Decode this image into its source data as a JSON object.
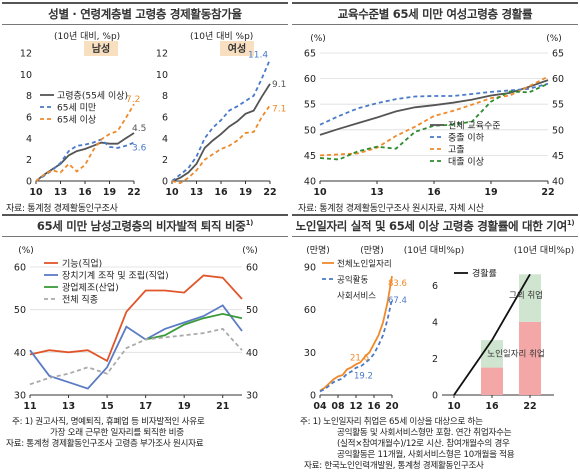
{
  "titles": {
    "p1": "성별 · 연령계층별 고령층 경제활동참가율",
    "p2": "교육수준별 65세 미만 여성고령층 경활률",
    "p3": "65세 미만 남성고령층의 비자발적 퇴직 비중",
    "p3_sup": "1)",
    "p4": "노인일자리 실적 및 65세 이상 고령층 경활률에 대한 기여",
    "p4_sup": "1)"
  },
  "sources": {
    "p1": "자료: 통계청 경제활동인구조사",
    "p2": "자료: 통계청 경제활동인구조사 원시자료, 자체 시산",
    "p3_note": "주: 1) 권고사직, 명예퇴직, 휴폐업 등 비자발적인 사유로",
    "p3_note2": "가장 오래 근무한 일자리를 퇴직한 비중",
    "p3_src": "자료: 통계청 경제활동인구조사 고령층 부가조사 원시자료",
    "p4_note1": "주: 1) 노인일자리 취업은 65세 이상을 대상으로 하는",
    "p4_note2": "공익활동 및 사회서비스형만 포함. 연간 취업자수는",
    "p4_note3": "(실적×참여개월수)/12로 시산. 참여개월수의 경우",
    "p4_note4": "공익활동은 11개월, 사회서비스형은 10개월을 적용",
    "p4_src": "자료: 한국노인인력개발원, 통계청 경제활동인구조사"
  },
  "chart_data": [
    {
      "id": "p1",
      "type": "line",
      "subcharts": [
        {
          "label": "남성",
          "unit": "(10년 대비, %p)",
          "x": [
            10,
            11,
            12,
            13,
            14,
            15,
            16,
            17,
            18,
            19,
            20,
            21,
            22
          ],
          "xticks": [
            "10",
            "13",
            "16",
            "19",
            "22"
          ],
          "ylim": [
            0,
            12
          ],
          "yticks": [
            0,
            2,
            4,
            6,
            8,
            10,
            12
          ],
          "series": [
            {
              "name": "고령층(55세 이상)",
              "color": "#555555",
              "dash": "",
              "values": [
                0,
                0.6,
                1.1,
                1.6,
                2.4,
                2.8,
                3.0,
                3.3,
                3.6,
                3.5,
                3.5,
                4.0,
                4.5
              ]
            },
            {
              "name": "65세 미만",
              "color": "#4a7ac8",
              "dash": "4,3",
              "values": [
                0,
                0.5,
                1.0,
                1.7,
                2.8,
                3.3,
                3.4,
                3.6,
                3.9,
                3.2,
                3.1,
                3.3,
                3.6
              ]
            },
            {
              "name": "65세 이상",
              "color": "#ef8a2a",
              "dash": "4,3",
              "values": [
                0,
                0.6,
                1.0,
                0.8,
                1.6,
                0.9,
                1.5,
                2.9,
                3.9,
                4.4,
                4.7,
                5.9,
                7.2
              ]
            }
          ],
          "end_labels": [
            "4.5",
            "7.2",
            "3.6"
          ]
        },
        {
          "label": "여성",
          "unit": "(10년 대비 %p)",
          "x": [
            10,
            11,
            12,
            13,
            14,
            15,
            16,
            17,
            18,
            19,
            20,
            21,
            22
          ],
          "xticks": [
            "10",
            "13",
            "16",
            "19",
            "22"
          ],
          "ylim": [
            0,
            12
          ],
          "yticks": [
            0,
            2,
            4,
            6,
            8,
            10,
            12
          ],
          "series": [
            {
              "name": "고령층(55세 이상)",
              "color": "#555555",
              "dash": "",
              "values": [
                0,
                0.3,
                0.8,
                1.6,
                3.1,
                3.8,
                4.4,
                5.1,
                5.6,
                6.3,
                6.6,
                7.9,
                9.1
              ]
            },
            {
              "name": "65세 미만",
              "color": "#4a7ac8",
              "dash": "4,3",
              "values": [
                0,
                0.6,
                1.2,
                2.3,
                4.0,
                5.0,
                5.7,
                6.6,
                7.0,
                7.5,
                8.0,
                9.6,
                11.4
              ]
            },
            {
              "name": "65세 이상",
              "color": "#ef8a2a",
              "dash": "4,3",
              "values": [
                0,
                -0.2,
                0.3,
                1.0,
                2.0,
                2.5,
                3.0,
                3.3,
                3.8,
                4.5,
                4.6,
                6.0,
                7.1
              ]
            }
          ],
          "end_labels": [
            "11.4",
            "9.1",
            "7.1"
          ]
        }
      ]
    },
    {
      "id": "p2",
      "type": "line",
      "unit_left": "(%)",
      "unit_right": "(%)",
      "x": [
        10,
        11,
        12,
        13,
        14,
        15,
        16,
        17,
        18,
        19,
        20,
        21,
        22
      ],
      "xticks": [
        "10",
        "13",
        "16",
        "19",
        "22"
      ],
      "ylim": [
        40,
        65
      ],
      "yticks": [
        40,
        45,
        50,
        55,
        60,
        65
      ],
      "series": [
        {
          "name": "전체 교육수준",
          "color": "#555555",
          "dash": "",
          "values": [
            49.0,
            50.2,
            51.3,
            52.4,
            53.6,
            54.4,
            54.8,
            55.3,
            55.9,
            56.7,
            57.2,
            58.4,
            59.7
          ]
        },
        {
          "name": "중졸 이하",
          "color": "#4a7ac8",
          "dash": "4,3",
          "values": [
            51.0,
            52.7,
            54.2,
            55.2,
            56.0,
            56.5,
            56.6,
            56.6,
            57.0,
            57.4,
            57.7,
            58.0,
            59.0
          ]
        },
        {
          "name": "고졸",
          "color": "#ef8a2a",
          "dash": "4,3",
          "values": [
            45.0,
            45.2,
            45.4,
            46.5,
            48.8,
            50.6,
            52.7,
            53.7,
            54.9,
            56.2,
            56.7,
            58.5,
            60.4
          ]
        },
        {
          "name": "대졸 이상",
          "color": "#2e8b2e",
          "dash": "4,3",
          "values": [
            44.5,
            44.2,
            45.8,
            46.7,
            46.3,
            49.6,
            50.8,
            51.0,
            51.6,
            55.5,
            57.5,
            57.3,
            59.0
          ]
        }
      ]
    },
    {
      "id": "p3",
      "type": "line",
      "unit_left": "(%)",
      "unit_right": "(%)",
      "x": [
        11,
        12,
        13,
        14,
        15,
        16,
        17,
        18,
        19,
        20,
        21,
        22
      ],
      "xticks": [
        "11",
        "13",
        "15",
        "17",
        "19",
        "21"
      ],
      "ylim": [
        30,
        60
      ],
      "yticks": [
        30,
        40,
        50,
        60
      ],
      "series": [
        {
          "name": "기능(직업)",
          "color": "#e0552a",
          "dash": "",
          "values": [
            39.5,
            40.5,
            40.0,
            40.5,
            38.0,
            49.5,
            54.5,
            54.5,
            54.0,
            58.0,
            57.5,
            52.5
          ]
        },
        {
          "name": "장치기계 조작 및 조립(직업)",
          "color": "#5b7bc4",
          "dash": "",
          "values": [
            40.5,
            34.5,
            33.0,
            31.5,
            36.5,
            46.0,
            43.0,
            45.5,
            47.0,
            48.5,
            51.0,
            45.0
          ]
        },
        {
          "name": "광업제조(산업)",
          "color": "#3a9a3a",
          "dash": "",
          "values": [
            null,
            null,
            null,
            null,
            null,
            null,
            43.0,
            44.0,
            46.5,
            48.0,
            49.0,
            48.0
          ]
        },
        {
          "name": "전체 직종",
          "color": "#aaaaaa",
          "dash": "4,3",
          "values": [
            32.5,
            34.0,
            35.0,
            36.5,
            35.0,
            41.0,
            43.0,
            43.5,
            44.0,
            44.5,
            45.5,
            40.5
          ]
        }
      ]
    },
    {
      "id": "p4a",
      "type": "line",
      "unit_left": "(만명)",
      "unit_right": "(만명)",
      "x": [
        4,
        5,
        6,
        7,
        8,
        9,
        10,
        11,
        12,
        13,
        14,
        15,
        16,
        17,
        18,
        19,
        20
      ],
      "xticks": [
        "04",
        "08",
        "12",
        "16",
        "20"
      ],
      "ylim": [
        0,
        90
      ],
      "yticks": [
        0,
        30,
        60,
        90
      ],
      "series": [
        {
          "name": "전체노인일자리",
          "color": "#ef8a2a",
          "dash": "",
          "values": [
            3,
            5,
            8,
            11,
            13,
            14,
            18,
            19.5,
            21.6,
            23,
            27,
            30,
            36,
            42,
            51,
            65,
            83.6
          ]
        },
        {
          "name": "공익활동",
          "color": "#4a7ac8",
          "dash": "4,3",
          "values": [
            2.5,
            4,
            6.5,
            9,
            10.5,
            11.5,
            15,
            16.5,
            19.2,
            20,
            22.5,
            25,
            29,
            35,
            42,
            53,
            67.4
          ]
        }
      ],
      "legend_extra": "사회서비스",
      "labels": [
        "21.6",
        "19.2",
        "83.6",
        "67.4"
      ]
    },
    {
      "id": "p4b",
      "type": "bar",
      "unit_left": "(10년 대비%p)",
      "unit_right": "(10년 대비%p)",
      "categories": [
        "16",
        "22"
      ],
      "xticks": [
        "10",
        "16",
        "22"
      ],
      "ylim": [
        0,
        7
      ],
      "yticks": [
        0,
        2,
        4,
        6
      ],
      "series": [
        {
          "name": "노인일자리 취업",
          "color": "#f3a7a7",
          "values": [
            1.5,
            4.0
          ]
        },
        {
          "name": "그외 취업",
          "color": "#cfe5cf",
          "values": [
            1.5,
            2.6
          ]
        }
      ],
      "line": {
        "name": "경활률",
        "color": "#111111",
        "values": [
          0,
          3.0,
          6.6
        ],
        "x": [
          "10",
          "16",
          "22"
        ]
      },
      "labels": [
        "노인일자리 취업",
        "그외 취업"
      ]
    }
  ]
}
